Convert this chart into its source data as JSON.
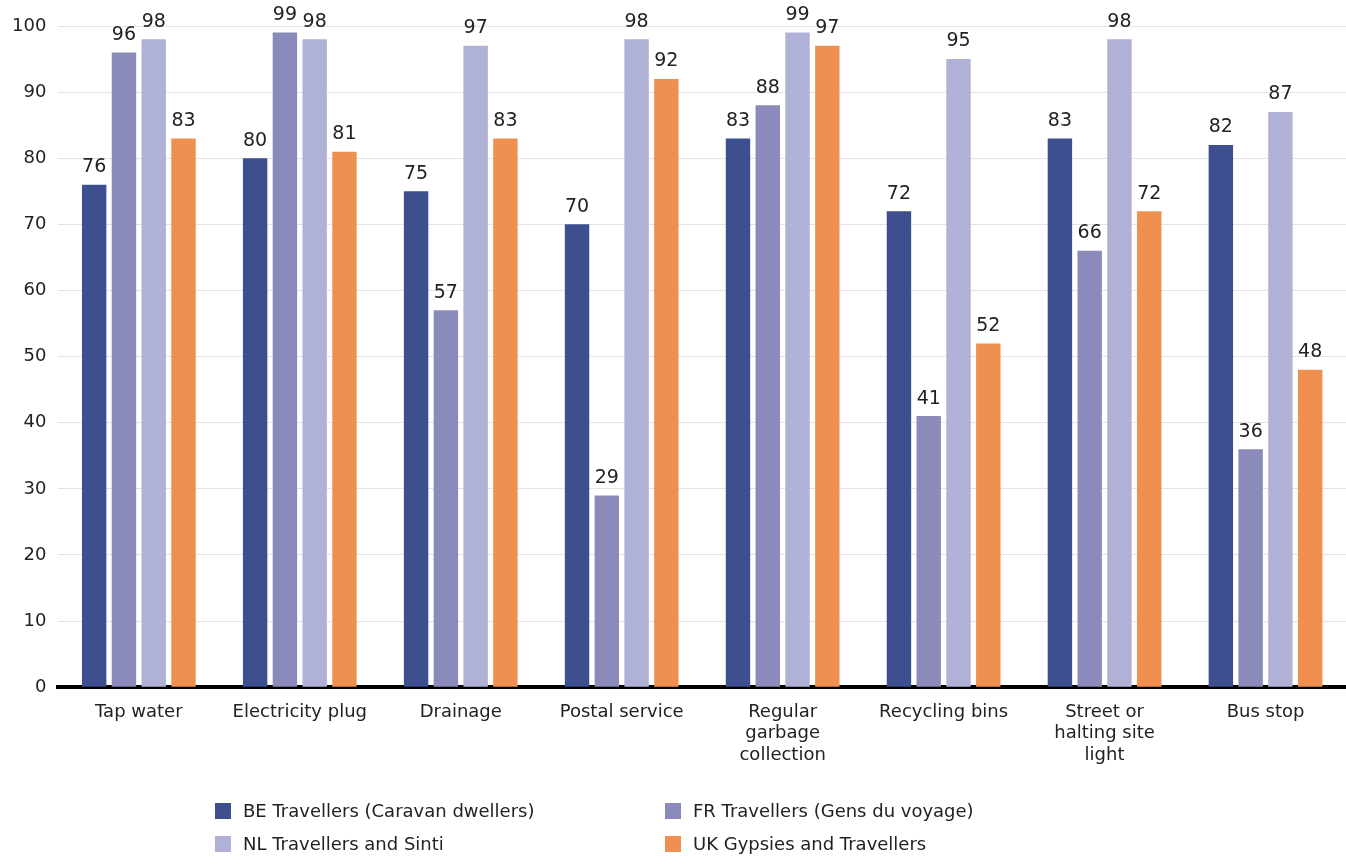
{
  "chart_data": {
    "type": "bar",
    "categories": [
      "Tap water",
      "Electricity plug",
      "Drainage",
      "Postal service",
      "Regular garbage collection",
      "Recycling bins",
      "Street or halting site light",
      "Bus stop"
    ],
    "series": [
      {
        "name": "BE Travellers (Caravan dwellers)",
        "color": "#3d4f8f",
        "values": [
          76,
          80,
          75,
          70,
          83,
          72,
          83,
          82
        ]
      },
      {
        "name": "FR Travellers (Gens du voyage)",
        "color": "#8a8bbb",
        "values": [
          96,
          99,
          57,
          29,
          88,
          41,
          66,
          36
        ]
      },
      {
        "name": "NL Travellers and Sinti",
        "color": "#b0b1d6",
        "values": [
          98,
          98,
          97,
          98,
          99,
          95,
          98,
          87
        ]
      },
      {
        "name": "UK Gypsies and Travellers",
        "color": "#f09050",
        "values": [
          83,
          81,
          83,
          92,
          97,
          52,
          72,
          48
        ]
      }
    ],
    "ylim": [
      0,
      100
    ],
    "yticks": [
      0,
      10,
      20,
      30,
      40,
      50,
      60,
      70,
      80,
      90,
      100
    ],
    "grid": "y",
    "legend": "bottom",
    "data_labels": true
  }
}
